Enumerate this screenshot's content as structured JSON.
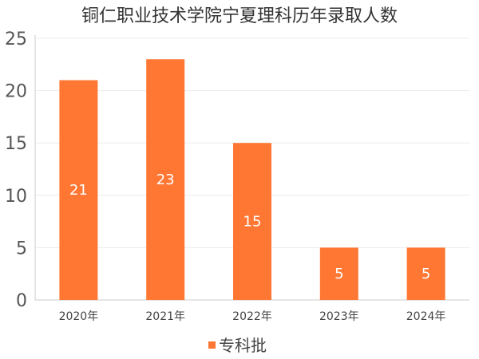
{
  "chart_data": {
    "type": "bar",
    "title": "铜仁职业技术学院宁夏理科历年录取人数",
    "categories": [
      "2020年",
      "2021年",
      "2022年",
      "2023年",
      "2024年"
    ],
    "series": [
      {
        "name": "专科批",
        "values": [
          21,
          23,
          15,
          5,
          5
        ],
        "color": "#ff7733"
      }
    ],
    "ylim": [
      0,
      25
    ],
    "yticks": [
      0,
      5,
      10,
      15,
      20,
      25
    ],
    "xlabel": "",
    "ylabel": "",
    "grid": true,
    "legend_position": "bottom-center",
    "data_labels": [
      "21",
      "23",
      "15",
      "5",
      "5"
    ]
  }
}
